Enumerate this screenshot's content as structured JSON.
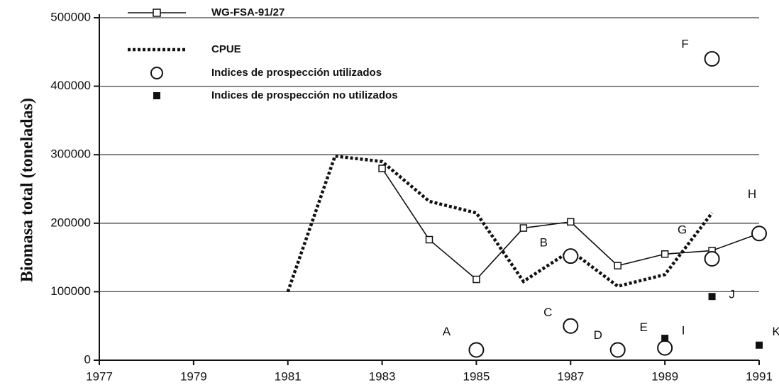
{
  "chart_data": {
    "type": "line",
    "y_label": "Biomasa total (toneladas)",
    "xlim": [
      1977,
      1991
    ],
    "xticks": [
      1977,
      1979,
      1981,
      1983,
      1985,
      1987,
      1989,
      1991
    ],
    "ylim": [
      0,
      500000
    ],
    "yticks": [
      0,
      100000,
      200000,
      300000,
      400000,
      500000
    ],
    "grid": true,
    "legend": "upper left",
    "series": [
      {
        "name": "WG-FSA-91/27",
        "style": "line-square",
        "color": "#111111",
        "x": [
          1983,
          1984,
          1985,
          1986,
          1987,
          1988,
          1989,
          1990,
          1991
        ],
        "values": [
          280000,
          176000,
          118000,
          193000,
          202000,
          138000,
          155000,
          160000,
          185000
        ]
      },
      {
        "name": "CPUE",
        "style": "dotted",
        "color": "#111111",
        "x": [
          1981,
          1982,
          1983,
          1984,
          1985,
          1986,
          1987,
          1988,
          1989,
          1990
        ],
        "values": [
          100000,
          298000,
          290000,
          232000,
          215000,
          115000,
          160000,
          108000,
          125000,
          215000
        ]
      },
      {
        "name": "Indices de prospección utilizados",
        "style": "open-circle",
        "color": "#111111",
        "x": [
          1985,
          1987,
          1987,
          1988,
          1989,
          1990,
          1990,
          1991
        ],
        "values": [
          15000,
          152000,
          50000,
          15000,
          18000,
          440000,
          148000,
          185000
        ],
        "labels": [
          "A",
          "B",
          "C",
          "D",
          "E",
          "F",
          "G",
          "H"
        ]
      },
      {
        "name": "Indices de prospección no utilizados",
        "style": "filled-square",
        "color": "#111111",
        "x": [
          1989,
          1990,
          1991
        ],
        "values": [
          32000,
          93000,
          22000
        ],
        "labels": [
          "I",
          "J",
          "K"
        ]
      }
    ]
  }
}
